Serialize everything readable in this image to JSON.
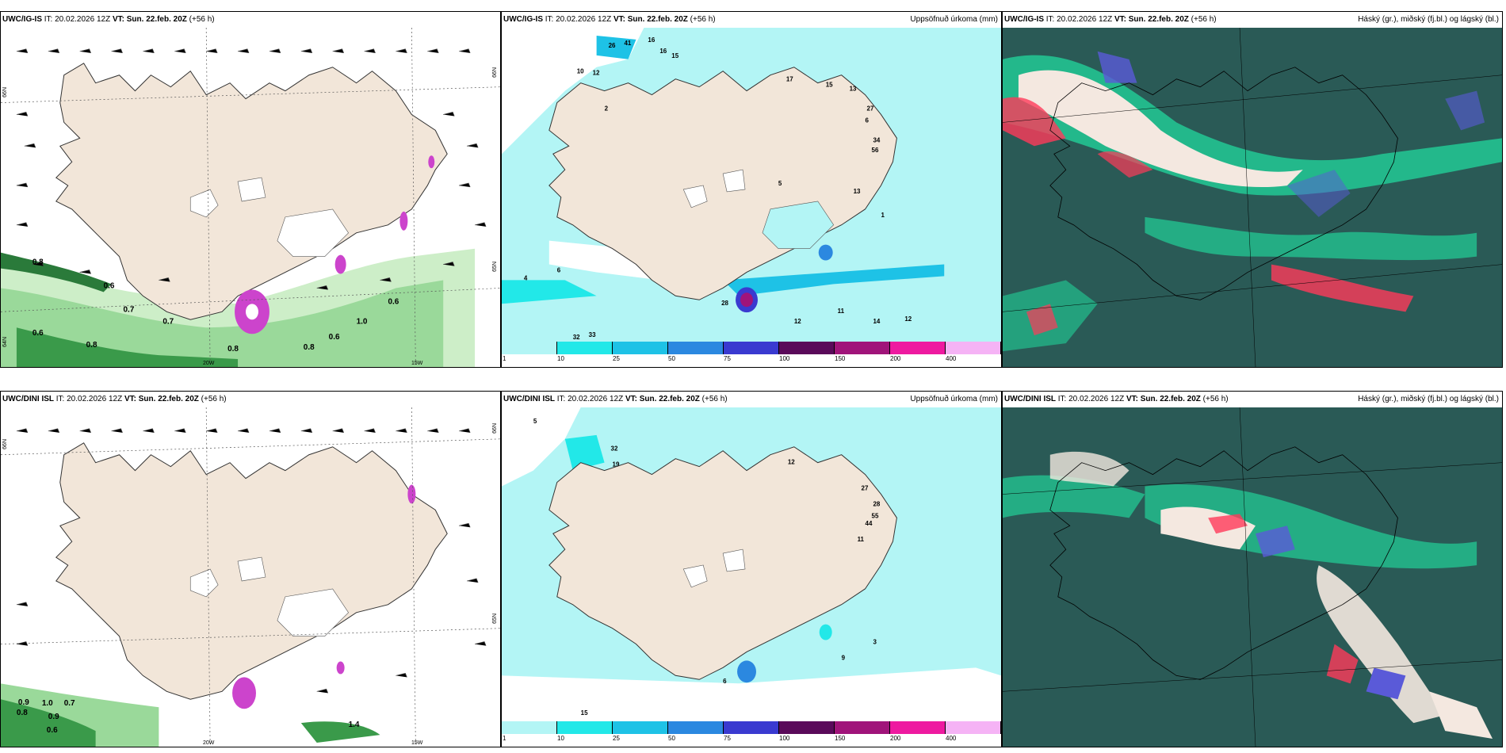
{
  "colors": {
    "land": "#f2e6d9",
    "sea_wind_bg": "#ffffff",
    "precip_1": "#b3f5f5",
    "precip_10": "#22e8e8",
    "precip_25": "#1ec2e6",
    "precip_50": "#2b88e0",
    "precip_75": "#3a3ad0",
    "precip_100": "#5a0a5a",
    "precip_150": "#a0147a",
    "precip_200": "#ee1aa0",
    "precip_400": "#f5b3f5",
    "cloud_bg": "#2a5a56",
    "cloud_high": "#ff3a5a",
    "cloud_mid": "#22d098",
    "cloud_low": "#5a5ad8",
    "windgust": "#2ab84a"
  },
  "rows": [
    {
      "model": "UWC/IG-IS",
      "panels": [
        {
          "model": "UWC/IG-IS",
          "it_label": "IT:",
          "it_value": "20.02.2026 12Z",
          "vt_label": "VT:",
          "vt_value": "Sun. 22.feb. 20Z",
          "lead": "(+56 h)",
          "right_title": ""
        },
        {
          "model": "UWC/IG-IS",
          "it_label": "IT:",
          "it_value": "20.02.2026 12Z",
          "vt_label": "VT:",
          "vt_value": "Sun. 22.feb. 20Z",
          "lead": "(+56 h)",
          "right_title": "Uppsöfnuð úrkoma (mm)"
        },
        {
          "model": "UWC/IG-IS",
          "it_label": "IT:",
          "it_value": "20.02.2026 12Z",
          "vt_label": "VT:",
          "vt_value": "Sun. 22.feb. 20Z",
          "lead": "(+56 h)",
          "right_title": "Háský (gr.), miðský (fj.bl.) og lágský (bl.)"
        }
      ]
    },
    {
      "model": "UWC/DINI ISL",
      "panels": [
        {
          "model": "UWC/DINI ISL",
          "it_label": "IT:",
          "it_value": "20.02.2026 12Z",
          "vt_label": "VT:",
          "vt_value": "Sun. 22.feb. 20Z",
          "lead": "(+56 h)",
          "right_title": ""
        },
        {
          "model": "UWC/DINI ISL",
          "it_label": "IT:",
          "it_value": "20.02.2026 12Z",
          "vt_label": "VT:",
          "vt_value": "Sun. 22.feb. 20Z",
          "lead": "(+56 h)",
          "right_title": "Uppsöfnuð úrkoma (mm)"
        },
        {
          "model": "UWC/DINI ISL",
          "it_label": "IT:",
          "it_value": "20.02.2026 12Z",
          "vt_label": "VT:",
          "vt_value": "Sun. 22.feb. 20Z",
          "lead": "(+56 h)",
          "right_title": "Háský (gr.), miðský (fj.bl.) og lágský (bl.)"
        }
      ]
    }
  ],
  "precip_legend": [
    "1",
    "10",
    "25",
    "50",
    "75",
    "100",
    "150",
    "200",
    "400"
  ],
  "coords": {
    "lat66": "66N",
    "lat65": "65N",
    "lat64": "64N",
    "lon20": "20W",
    "lon15": "15W"
  },
  "wind_gust_labels_top": [
    "0.8",
    "0.6",
    "0.7",
    "0.7",
    "0.6",
    "0.8",
    "0.8",
    "0.8",
    "0.6",
    "1.0",
    "0.6"
  ],
  "wind_gust_labels_bottom": [
    "0.9",
    "1.0",
    "0.7",
    "0.8",
    "0.9",
    "0.6",
    "1.4"
  ],
  "precip_values_top": [
    "26",
    "41",
    "16",
    "16",
    "15",
    "12",
    "10",
    "2",
    "17",
    "15",
    "13",
    "27",
    "34",
    "56",
    "6",
    "5",
    "13",
    "1",
    "28",
    "32",
    "33",
    "12",
    "11",
    "14",
    "12",
    "4",
    "6"
  ],
  "precip_values_bottom": [
    "32",
    "19",
    "12",
    "27",
    "28",
    "55",
    "44",
    "11",
    "6",
    "9",
    "3",
    "5",
    "15"
  ]
}
